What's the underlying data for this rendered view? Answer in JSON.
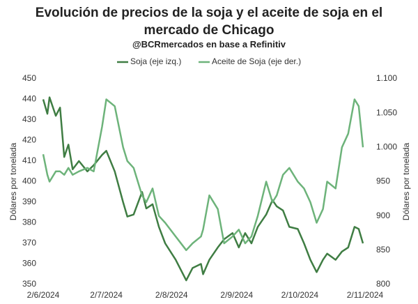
{
  "chart_data": {
    "type": "line",
    "title": "Evolución de precios de la soja y el aceite de soja en el mercado de Chicago",
    "subtitle": "@BCRmercados en base a Refinitiv",
    "y_label": "Dólares por tonelada",
    "y2_label": "Dólares por tonelada",
    "x": [
      "2024-06-02",
      "2024-06-04",
      "2024-06-05",
      "2024-06-08",
      "2024-06-10",
      "2024-06-12",
      "2024-06-14",
      "2024-06-16",
      "2024-06-19",
      "2024-06-23",
      "2024-06-26",
      "2024-06-30",
      "2024-07-02",
      "2024-07-06",
      "2024-07-10",
      "2024-07-12",
      "2024-07-15",
      "2024-07-19",
      "2024-07-21",
      "2024-07-24",
      "2024-07-27",
      "2024-07-30",
      "2024-08-04",
      "2024-08-09",
      "2024-08-12",
      "2024-08-16",
      "2024-08-17",
      "2024-08-20",
      "2024-08-24",
      "2024-08-27",
      "2024-08-31",
      "2024-09-03",
      "2024-09-06",
      "2024-09-09",
      "2024-09-12",
      "2024-09-16",
      "2024-09-19",
      "2024-09-21",
      "2024-09-24",
      "2024-09-27",
      "2024-10-01",
      "2024-10-04",
      "2024-10-07",
      "2024-10-10",
      "2024-10-13",
      "2024-10-15",
      "2024-10-19",
      "2024-10-22",
      "2024-10-25",
      "2024-10-28",
      "2024-10-30",
      "2024-11-01"
    ],
    "xlim": [
      "2024-06-02",
      "2024-11-03"
    ],
    "xticks": [
      {
        "value": "2024-06-02",
        "label": "2/6/2024"
      },
      {
        "value": "2024-07-02",
        "label": "2/7/2024"
      },
      {
        "value": "2024-08-02",
        "label": "2/8/2024"
      },
      {
        "value": "2024-09-02",
        "label": "2/9/2024"
      },
      {
        "value": "2024-10-02",
        "label": "2/10/2024"
      },
      {
        "value": "2024-11-02",
        "label": "2/11/2024"
      }
    ],
    "ylim": [
      350,
      450
    ],
    "yticks": [
      350,
      360,
      370,
      380,
      390,
      400,
      410,
      420,
      430,
      440,
      450
    ],
    "y2lim": [
      800,
      1100
    ],
    "y2ticks": [
      800,
      850,
      900,
      950,
      {
        "value": 1000,
        "label": "1.000"
      },
      {
        "value": 1050,
        "label": "1.050"
      },
      {
        "value": 1100,
        "label": "1.100"
      }
    ],
    "series": [
      {
        "name": "Soja (eje izq.)",
        "color": "#3f7d43",
        "values": [
          440,
          433,
          441,
          432,
          436,
          412,
          418,
          406,
          410,
          405,
          408,
          413,
          415,
          405,
          390,
          383,
          384,
          395,
          387,
          389,
          378,
          370,
          362,
          352,
          358,
          360,
          355,
          362,
          368,
          372,
          375,
          368,
          375,
          370,
          378,
          384,
          391,
          388,
          386,
          378,
          377,
          370,
          362,
          356,
          362,
          365,
          362,
          366,
          368,
          378,
          377,
          370
        ]
      },
      {
        "name": "Aceite de Soja (eje der.)",
        "color": "#6db37a",
        "axis": "y2",
        "values": [
          990,
          960,
          950,
          965,
          965,
          960,
          970,
          960,
          965,
          970,
          965,
          1030,
          1070,
          1060,
          1000,
          980,
          970,
          930,
          920,
          940,
          900,
          890,
          870,
          850,
          860,
          870,
          880,
          930,
          910,
          860,
          870,
          880,
          860,
          870,
          900,
          950,
          920,
          930,
          960,
          970,
          950,
          940,
          920,
          890,
          910,
          950,
          940,
          1000,
          1020,
          1070,
          1060,
          1000
        ]
      }
    ]
  }
}
